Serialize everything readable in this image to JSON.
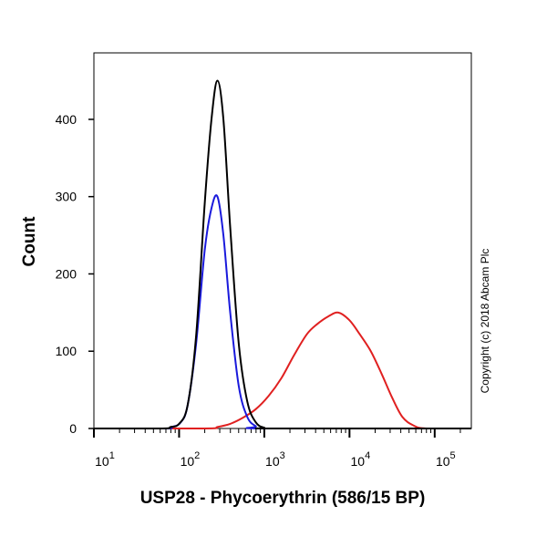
{
  "chart_data": {
    "type": "line",
    "title": "",
    "xlabel": "USP28 - Phycoerythrin (586/15 BP)",
    "ylabel": "Count",
    "xscale": "log",
    "xlim_log10": [
      1,
      5.43
    ],
    "ylim": [
      0,
      486
    ],
    "x_ticks": [
      {
        "base": "10",
        "exp": "1",
        "log10": 1
      },
      {
        "base": "10",
        "exp": "2",
        "log10": 2
      },
      {
        "base": "10",
        "exp": "3",
        "log10": 3
      },
      {
        "base": "10",
        "exp": "4",
        "log10": 4
      },
      {
        "base": "10",
        "exp": "5",
        "log10": 5
      }
    ],
    "y_ticks": [
      0,
      100,
      200,
      300,
      400
    ],
    "annotation": "Copyright (c) 2018 Abcam Plc",
    "series": [
      {
        "name": "black",
        "color": "#000000",
        "x_log10": [
          1.0,
          1.8,
          1.9,
          2.0,
          2.1,
          2.2,
          2.3,
          2.38,
          2.45,
          2.52,
          2.6,
          2.7,
          2.8,
          2.9,
          3.0,
          3.1,
          5.43
        ],
        "y": [
          0,
          0,
          2,
          6,
          30,
          120,
          290,
          400,
          450,
          400,
          260,
          110,
          35,
          8,
          1,
          0,
          0
        ]
      },
      {
        "name": "blue",
        "color": "#1a1adc",
        "x_log10": [
          1.0,
          1.82,
          1.92,
          2.02,
          2.1,
          2.2,
          2.3,
          2.38,
          2.45,
          2.52,
          2.6,
          2.7,
          2.8,
          2.9,
          3.0,
          5.43
        ],
        "y": [
          0,
          0,
          2,
          8,
          30,
          110,
          230,
          285,
          300,
          250,
          150,
          55,
          15,
          3,
          0,
          0
        ]
      },
      {
        "name": "red",
        "color": "#e02020",
        "x_log10": [
          1.0,
          2.3,
          2.45,
          2.6,
          2.75,
          2.9,
          3.05,
          3.2,
          3.35,
          3.5,
          3.62,
          3.75,
          3.87,
          4.0,
          4.12,
          4.25,
          4.38,
          4.5,
          4.62,
          4.75,
          4.9,
          5.43
        ],
        "y": [
          0,
          0,
          2,
          6,
          14,
          25,
          42,
          65,
          95,
          122,
          135,
          145,
          150,
          140,
          122,
          100,
          70,
          40,
          15,
          4,
          0,
          0
        ]
      }
    ]
  }
}
